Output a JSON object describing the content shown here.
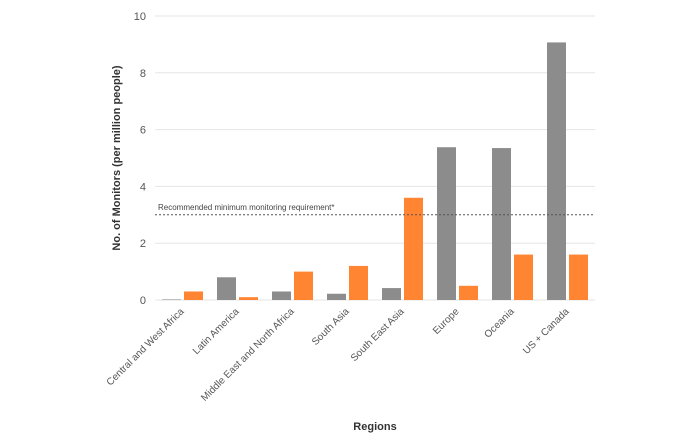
{
  "chart_data": {
    "type": "bar",
    "xlabel": "Regions",
    "ylabel": "No. of Monitors (per million people)",
    "ylim": [
      0,
      10
    ],
    "yticks": [
      0,
      2,
      4,
      6,
      8,
      10
    ],
    "grid": true,
    "categories": [
      "Central and West Africa",
      "Latin America",
      "Middle East and North Africa",
      "South Asia",
      "South East Asia",
      "Europe",
      "Oceania",
      "US + Canada"
    ],
    "series": [
      {
        "color": "#8c8c8c",
        "values": [
          0.02,
          0.8,
          0.3,
          0.22,
          0.42,
          5.38,
          5.35,
          9.07
        ]
      },
      {
        "color": "#ff8533",
        "values": [
          0.3,
          0.1,
          1.0,
          1.2,
          3.6,
          0.5,
          1.6,
          1.6
        ]
      }
    ],
    "reference_line": {
      "value": 3.0,
      "label": "Recommended minimum monitoring requirement*"
    }
  }
}
